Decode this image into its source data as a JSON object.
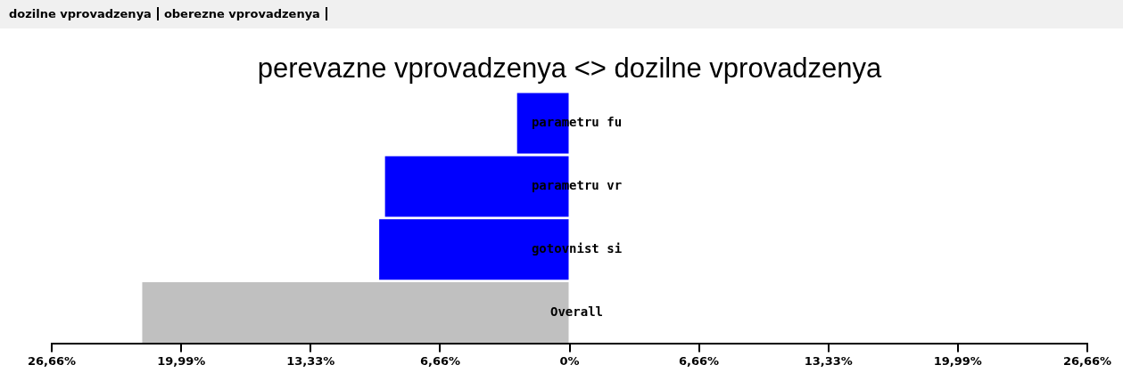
{
  "chart_data": {
    "type": "bar",
    "orientation": "horizontal",
    "title": "perevazne vprovadzenya <> dozilne vprovadzenya",
    "categories": [
      "parametru fu",
      "parametru vr",
      "gotovnist si",
      "Overall"
    ],
    "values": [
      -2.7,
      -9.5,
      -9.8,
      -22.0
    ],
    "colors": [
      "#0000ff",
      "#0000ff",
      "#0000ff",
      "#c0c0c0"
    ],
    "xlim": [
      -26.66,
      26.66
    ],
    "xticks": [
      {
        "value": -26.66,
        "label": "26,66%"
      },
      {
        "value": -19.99,
        "label": "19,99%"
      },
      {
        "value": -13.33,
        "label": "13,33%"
      },
      {
        "value": -6.66,
        "label": "6,66%"
      },
      {
        "value": 0,
        "label": "0%"
      },
      {
        "value": 6.66,
        "label": "6,66%"
      },
      {
        "value": 13.33,
        "label": "13,33%"
      },
      {
        "value": 19.99,
        "label": "19,99%"
      },
      {
        "value": 26.66,
        "label": "26,66%"
      }
    ],
    "annotations": [
      "dozilne vprovadzenya",
      "oberezne vprovadzenya"
    ],
    "grid": false,
    "legend": false
  }
}
